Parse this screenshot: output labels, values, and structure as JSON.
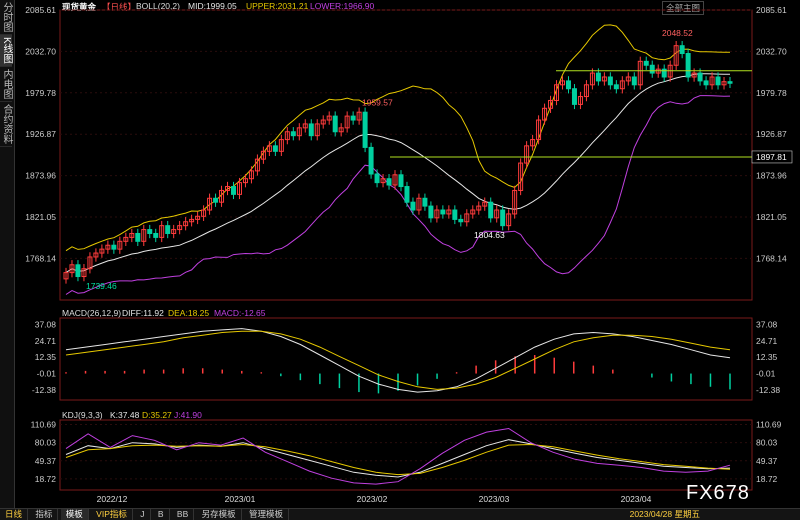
{
  "sidebar": {
    "tabs": [
      "分时图",
      "K线图",
      "内电图",
      "合约资料"
    ],
    "active": 1
  },
  "header": {
    "instrument": "现货黄金",
    "period": "【日线】",
    "indicator": "BOLL(20,2)",
    "mid": "MID:1999.05",
    "upper": "UPPER:2031.21",
    "lower": "LOWER:1966.90",
    "selector": "全部主图"
  },
  "macd_header": {
    "name": "MACD(26,12,9)",
    "diff": "DIFF:11.92",
    "dea": "DEA:18.25",
    "macd": "MACD:-12.65"
  },
  "kdj_header": {
    "name": "KDJ(9,3,3)",
    "k": "K:37.48",
    "d": "D:35.27",
    "j": "J:41.90"
  },
  "watermark": "FX678",
  "colors": {
    "up": "#ff3c3c",
    "down": "#00d0a0",
    "mid_line": "#e6e6e6",
    "upper_line": "#e6c800",
    "lower_line": "#c040e0",
    "axis_text": "#cccccc",
    "hline": "#b0e020"
  },
  "bottom_bar": {
    "period": "日线",
    "tabs": [
      "指标",
      "模板",
      "VIP指标",
      "J",
      "B",
      "BB",
      "另存模板",
      "管理模板"
    ],
    "active": 1,
    "timestamp": "2023/04/28 星期五"
  },
  "chart_data": [
    {
      "type": "candlestick",
      "title": "现货黄金 日线 BOLL(20,2)",
      "y_ticks": [
        "2085.61",
        "2032.70",
        "1979.78",
        "1926.87",
        "1873.96",
        "1821.05",
        "1768.14"
      ],
      "ylim": [
        1715,
        2085.61
      ],
      "x_ticks": [
        "2022/12",
        "2023/01",
        "2023/02",
        "2023/03",
        "2023/04"
      ],
      "annotations": [
        {
          "label": "2048.52",
          "value": 2048.52
        },
        {
          "label": "1959.57",
          "value": 1959.57
        },
        {
          "label": "1804.63",
          "value": 1804.63
        },
        {
          "label": "1739.46",
          "value": 1739.46
        }
      ],
      "horizontal_lines": [
        {
          "label": "1897.81",
          "value": 1897.81
        },
        {
          "value": 2008
        }
      ],
      "closes": [
        1750,
        1760,
        1745,
        1755,
        1770,
        1775,
        1780,
        1785,
        1780,
        1790,
        1795,
        1800,
        1790,
        1805,
        1800,
        1795,
        1810,
        1800,
        1805,
        1810,
        1815,
        1818,
        1822,
        1830,
        1845,
        1840,
        1855,
        1860,
        1850,
        1865,
        1870,
        1880,
        1895,
        1905,
        1912,
        1905,
        1920,
        1930,
        1925,
        1935,
        1940,
        1925,
        1940,
        1945,
        1950,
        1930,
        1935,
        1950,
        1945,
        1955,
        1910,
        1876,
        1865,
        1870,
        1862,
        1875,
        1860,
        1840,
        1830,
        1845,
        1835,
        1820,
        1830,
        1825,
        1830,
        1818,
        1815,
        1825,
        1830,
        1835,
        1840,
        1820,
        1830,
        1810,
        1825,
        1855,
        1890,
        1912,
        1920,
        1945,
        1960,
        1970,
        1990,
        1995,
        1985,
        1965,
        1975,
        1990,
        2005,
        1995,
        2000,
        1990,
        1985,
        1995,
        2000,
        1990,
        2020,
        2015,
        2005,
        2010,
        2000,
        2015,
        2040,
        2030,
        2000,
        2005,
        1995,
        1990,
        2000,
        1990,
        1994,
        1992
      ]
    },
    {
      "type": "macd",
      "y_ticks": [
        "37.08",
        "24.71",
        "12.35",
        "-0.01",
        "-12.38"
      ],
      "ylim": [
        -20,
        42
      ],
      "series": [
        {
          "name": "DIFF",
          "values": [
            18,
            20,
            22,
            24,
            26,
            28,
            30,
            32,
            33,
            34,
            32,
            28,
            22,
            14,
            6,
            -2,
            -8,
            -12,
            -14,
            -13,
            -10,
            -4,
            4,
            12,
            20,
            26,
            30,
            31,
            30,
            28,
            25,
            22,
            18,
            14,
            12
          ]
        },
        {
          "name": "DEA",
          "values": [
            14,
            16,
            18,
            20,
            22,
            24,
            27,
            29,
            31,
            32,
            32,
            30,
            26,
            20,
            13,
            6,
            -1,
            -6,
            -10,
            -12,
            -11,
            -8,
            -3,
            4,
            11,
            18,
            24,
            27,
            29,
            29,
            28,
            26,
            23,
            20,
            18
          ]
        }
      ],
      "histogram": [
        1,
        2,
        2,
        2,
        3,
        3,
        4,
        4,
        3,
        2,
        1,
        -2,
        -5,
        -8,
        -11,
        -14,
        -15,
        -13,
        -9,
        -4,
        1,
        6,
        10,
        13,
        14,
        12,
        9,
        6,
        3,
        0,
        -3,
        -6,
        -8,
        -10,
        -12
      ]
    },
    {
      "type": "kdj",
      "y_ticks": [
        "110.69",
        "80.03",
        "49.37",
        "18.72"
      ],
      "ylim": [
        0,
        115
      ],
      "series": [
        {
          "name": "K",
          "values": [
            60,
            75,
            70,
            80,
            78,
            72,
            76,
            74,
            80,
            70,
            60,
            50,
            40,
            30,
            25,
            22,
            30,
            45,
            60,
            75,
            85,
            78,
            70,
            62,
            55,
            50,
            45,
            40,
            38,
            36,
            37
          ]
        },
        {
          "name": "D",
          "values": [
            55,
            68,
            70,
            75,
            76,
            74,
            75,
            74,
            77,
            73,
            66,
            58,
            48,
            38,
            30,
            26,
            28,
            38,
            50,
            64,
            76,
            77,
            73,
            66,
            59,
            53,
            48,
            43,
            40,
            37,
            35
          ]
        },
        {
          "name": "J",
          "values": [
            70,
            95,
            72,
            92,
            84,
            68,
            80,
            76,
            88,
            64,
            48,
            32,
            20,
            12,
            10,
            14,
            36,
            62,
            84,
            98,
            104,
            80,
            64,
            52,
            45,
            42,
            38,
            32,
            30,
            32,
            42
          ]
        }
      ]
    }
  ]
}
